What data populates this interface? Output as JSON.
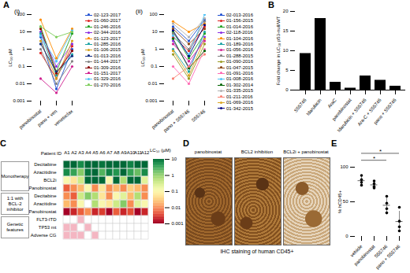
{
  "chart_data": [
    {
      "panel_label": "A",
      "subtitle": "(i)",
      "type": "line",
      "marker": "circle",
      "log": "y",
      "categories": [
        "panobinostat",
        "pano + ven",
        "venetoclax"
      ],
      "y_label": "LC₅₀ µM",
      "ylim": [
        0.001,
        100
      ],
      "yticks": [
        0.001,
        0.01,
        0.1,
        1,
        10,
        100
      ],
      "series": [
        {
          "name": "02-123-2017",
          "color": "#1f4fd1",
          "values": [
            5,
            0.005,
            1
          ]
        },
        {
          "name": "01-060-2017",
          "color": "#e02020",
          "values": [
            0.6,
            0.02,
            1.5
          ]
        },
        {
          "name": "01-246-2016",
          "color": "#22a022",
          "values": [
            20,
            0.05,
            8
          ]
        },
        {
          "name": "02-344-2016",
          "color": "#8a2be2",
          "values": [
            10,
            0.1,
            2
          ]
        },
        {
          "name": "01-123-2017",
          "color": "#ff8c00",
          "values": [
            50,
            0.3,
            15
          ]
        },
        {
          "name": "01-285-2016",
          "color": "#1aa3a3",
          "values": [
            8,
            0.03,
            0.5
          ]
        },
        {
          "name": "01-106-2015",
          "color": "#d4a017",
          "values": [
            3,
            0.02,
            3
          ]
        },
        {
          "name": "01-013-2016",
          "color": "#0b2a80",
          "values": [
            2,
            0.05,
            0.4
          ]
        },
        {
          "name": "01-144-2017",
          "color": "#808080",
          "values": [
            1,
            0.01,
            0.2
          ]
        },
        {
          "name": "01-309-2016",
          "color": "#8b0000",
          "values": [
            15,
            0.04,
            0.8
          ]
        },
        {
          "name": "01-151-2017",
          "color": "#d02090",
          "values": [
            0.02,
            0.003,
            0.1
          ]
        },
        {
          "name": "01-329-2016",
          "color": "#4fc3f7",
          "values": [
            6,
            0.2,
            12
          ]
        },
        {
          "name": "01-270-2016",
          "color": "#7ccd5a",
          "values": [
            20,
            5,
            10
          ]
        }
      ]
    },
    {
      "subtitle": "(ii)",
      "type": "line",
      "marker": "circle",
      "log": "y",
      "categories": [
        "panobinostat",
        "pano + S55746",
        "S55746"
      ],
      "y_label": "LC₅₀ µM",
      "ylim": [
        0.001,
        100
      ],
      "yticks": [
        0.001,
        0.01,
        0.1,
        1,
        10,
        100
      ],
      "series": [
        {
          "name": "02-013-2016",
          "color": "#1f4fd1",
          "values": [
            20,
            3,
            50
          ]
        },
        {
          "name": "01-156-2015",
          "color": "#e02020",
          "values": [
            5,
            0.8,
            20
          ]
        },
        {
          "name": "01-014-2016",
          "color": "#22a022",
          "values": [
            10,
            0.3,
            8
          ]
        },
        {
          "name": "02-118-2016",
          "color": "#8a2be2",
          "values": [
            3,
            0.1,
            5
          ]
        },
        {
          "name": "01-104-2016",
          "color": "#ff8c00",
          "values": [
            40,
            10,
            30
          ]
        },
        {
          "name": "01-189-2016",
          "color": "#1aa3a3",
          "values": [
            1,
            0.05,
            10
          ]
        },
        {
          "name": "01-056-2016",
          "color": "#d02090",
          "values": [
            2,
            0.2,
            3
          ]
        },
        {
          "name": "01-288-2015",
          "color": "#808080",
          "values": [
            8,
            1,
            40
          ]
        },
        {
          "name": "01-090-2016",
          "color": "#9a9a20",
          "values": [
            0.5,
            0.02,
            2
          ]
        },
        {
          "name": "01-047-2015",
          "color": "#8b4513",
          "values": [
            15,
            2,
            15
          ]
        },
        {
          "name": "01-091-2016",
          "color": "#ff69b4",
          "values": [
            0.1,
            0.01,
            1
          ]
        },
        {
          "name": "01-008-2016",
          "color": "#4fc3f7",
          "values": [
            6,
            0.5,
            100
          ]
        },
        {
          "name": "01-302-2014",
          "color": "#006400",
          "values": [
            4,
            0.08,
            0.8
          ]
        },
        {
          "name": "01-335-2015",
          "color": "#b0b0b0",
          "values": [
            30,
            5,
            60
          ]
        },
        {
          "name": "01-211-2016",
          "color": "#fa8072",
          "values": [
            0.02,
            0.1,
            0.5
          ]
        },
        {
          "name": "01-069-2016",
          "color": "#daa520",
          "values": [
            0.8,
            0.03,
            4
          ]
        },
        {
          "name": "01-342-2015",
          "color": "#000080",
          "values": [
            12,
            0.4,
            25
          ]
        }
      ]
    },
    {
      "panel_label": "B",
      "type": "bar",
      "color": "#000000",
      "categories": [
        "S55746",
        "Idarubicin",
        "AraC",
        "panobinostat",
        "Idarubicin + S55746",
        "Ara-C + S55746",
        "pano + S55746"
      ],
      "values": [
        9.3,
        18.2,
        2.0,
        0.5,
        3.6,
        2.5,
        1.0
      ],
      "y_label": "Fold change in LC₅₀ p53-null/WT",
      "ylim": [
        0,
        20
      ],
      "yticks": [
        0,
        5,
        10,
        15,
        20
      ]
    },
    {
      "panel_label": "C",
      "type": "heatmap",
      "column_header": "Patient ID",
      "columns": [
        "A1",
        "A2",
        "A3",
        "A4",
        "A5",
        "A6",
        "A7",
        "A8",
        "A9",
        "A10",
        "A11",
        "A12"
      ],
      "row_groups": [
        {
          "name": "Monotherapy",
          "rows": [
            "Decitabine",
            "Azacitidine",
            "BCL2i",
            "Panobinostat"
          ]
        },
        {
          "name": "1:1 with BCL-2 inhibitor",
          "rows": [
            "Decitabine",
            "Azacitidine",
            "Panobinostat"
          ]
        },
        {
          "name": "Genetic features",
          "rows": [
            "FLT3-ITD",
            "TP53 mt",
            "Adverse CG"
          ]
        }
      ],
      "cells": [
        [
          10,
          10,
          5,
          10,
          10,
          8,
          10,
          10,
          10,
          6,
          10,
          10
        ],
        [
          5,
          3,
          1,
          8,
          10,
          2,
          6,
          4,
          10,
          3,
          1.5,
          5
        ],
        [
          0.1,
          0.05,
          0.3,
          10,
          10,
          10,
          0.1,
          10,
          0.5,
          10,
          10,
          0.2
        ],
        [
          0.005,
          0.01,
          0.02,
          0.1,
          0.01,
          0.05,
          0.01,
          0.02,
          0.01,
          0.03,
          0.02,
          0.01
        ],
        [
          0.01,
          0.005,
          0.3,
          1,
          0.5,
          0.05,
          0.01,
          0.1,
          0.2,
          0.02,
          0.5,
          0.01
        ],
        [
          0.02,
          0.01,
          0.1,
          null,
          0.5,
          0.1,
          0.05,
          0.3,
          1,
          0.01,
          0.2,
          0.1
        ],
        [
          0.001,
          0.002,
          0.005,
          0.01,
          0.002,
          0.003,
          0.001,
          0.005,
          0.002,
          0.004,
          0.001,
          0.002
        ]
      ],
      "genetic_features": {
        "color": "#f4b6c2",
        "cells": [
          [
            false,
            false,
            true,
            false,
            false,
            false,
            false,
            false,
            false,
            false,
            false,
            false
          ],
          [
            true,
            true,
            false,
            true,
            false,
            false,
            false,
            false,
            false,
            false,
            false,
            false
          ],
          [
            true,
            true,
            true,
            false,
            true,
            false,
            false,
            false,
            false,
            false,
            false,
            false
          ]
        ]
      },
      "colorbar": {
        "title": "LC₅₀ (µM)",
        "range": [
          0.001,
          10
        ],
        "ticks": [
          10,
          1,
          0.1,
          0.01,
          0.001
        ]
      }
    },
    {
      "panel_label": "D",
      "type": "image",
      "images": [
        "panobinostat",
        "BCL2 inhibition",
        "BCL2i + panobinostat"
      ],
      "caption": "IHC staining of human CD45+"
    },
    {
      "panel_label": "E",
      "type": "scatter",
      "marker": "circle",
      "color": "#000000",
      "categories": [
        "vehicle",
        "panobinostat",
        "S55746",
        "pano + S55746"
      ],
      "values": [
        [
          88,
          82,
          78,
          74
        ],
        [
          80,
          76,
          72,
          70
        ],
        [
          58,
          48,
          40,
          34
        ],
        [
          42,
          22,
          14,
          8
        ]
      ],
      "y_label": "% hCD45+",
      "ylim": [
        0,
        100
      ],
      "yticks": [
        0,
        50,
        100
      ],
      "annotations": [
        {
          "from": "vehicle",
          "to": "S55746",
          "label": "*"
        },
        {
          "from": "vehicle",
          "to": "pano + S55746",
          "label": "*"
        }
      ]
    }
  ]
}
